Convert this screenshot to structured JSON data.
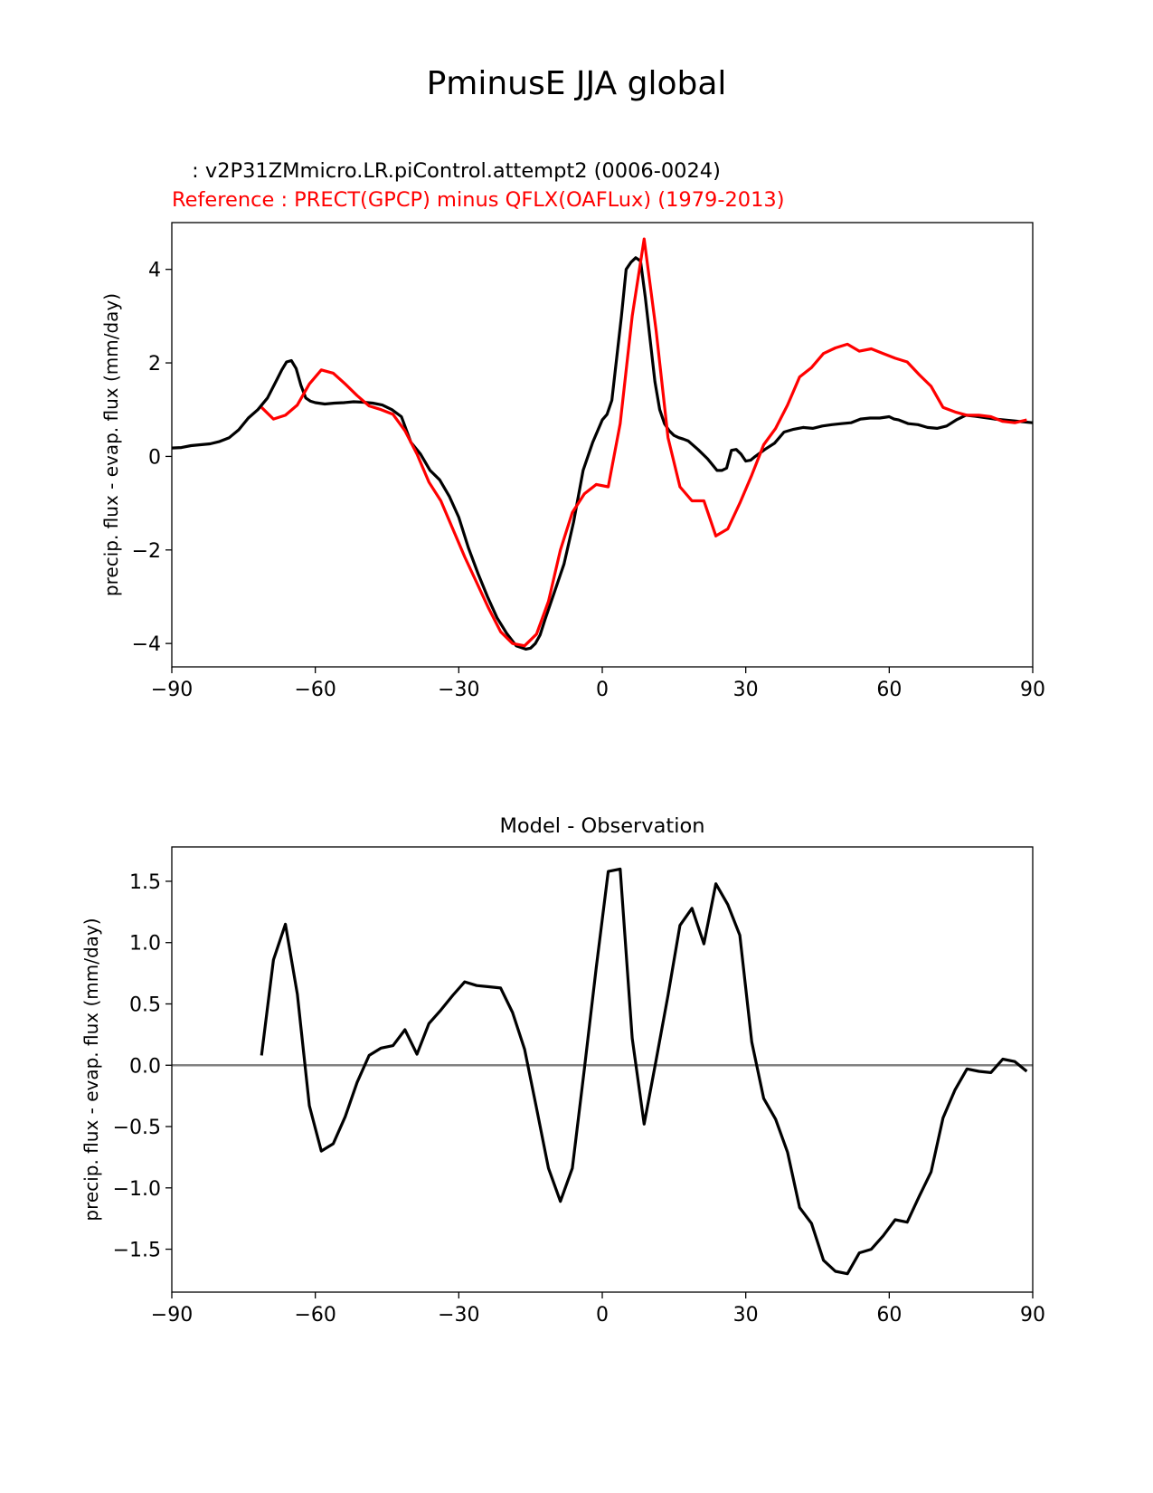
{
  "figure": {
    "title": "PminusE JJA global",
    "test_label": " : v2P31ZMmicro.LR.piControl.attempt2 (0006-0024)",
    "reference_label": "Reference : PRECT(GPCP) minus QFLX(OAFLux) (1979-2013)",
    "colors": {
      "test": "#000000",
      "reference": "#ff0000",
      "zero_line": "#808080"
    }
  },
  "chart_data": [
    {
      "type": "line",
      "title": "",
      "xlabel": "",
      "ylabel": "precip. flux - evap. flux (mm/day)",
      "xlim": [
        -90,
        90
      ],
      "ylim": [
        -4.5,
        5.0
      ],
      "xticks": [
        -90,
        -60,
        -30,
        0,
        30,
        60,
        90
      ],
      "yticks": [
        -4,
        -2,
        0,
        2,
        4
      ],
      "series": [
        {
          "name": "test",
          "color": "#000000",
          "x": [
            -90,
            -88,
            -86,
            -84,
            -82,
            -80,
            -78,
            -76,
            -74,
            -72,
            -70,
            -68,
            -67,
            -66,
            -65,
            -64,
            -63,
            -62,
            -61,
            -60,
            -58,
            -56,
            -54,
            -52,
            -50,
            -48,
            -46,
            -44,
            -42,
            -40,
            -38,
            -36,
            -34,
            -32,
            -30,
            -28,
            -26,
            -24,
            -22,
            -20,
            -18,
            -16,
            -15,
            -14,
            -13,
            -12,
            -10,
            -8,
            -6,
            -4,
            -2,
            0,
            1,
            2,
            3,
            4,
            5,
            6,
            7,
            8,
            9,
            10,
            11,
            12,
            13,
            14,
            15,
            16,
            17,
            18,
            20,
            22,
            24,
            25,
            26,
            27,
            28,
            29,
            30,
            31,
            32,
            34,
            36,
            38,
            40,
            42,
            44,
            46,
            48,
            50,
            52,
            54,
            56,
            58,
            60,
            61,
            62,
            64,
            66,
            68,
            70,
            72,
            74,
            76,
            78,
            80,
            82,
            84,
            86,
            88,
            90
          ],
          "y": [
            0.18,
            0.19,
            0.23,
            0.25,
            0.27,
            0.32,
            0.4,
            0.57,
            0.82,
            1.0,
            1.25,
            1.65,
            1.85,
            2.02,
            2.05,
            1.88,
            1.52,
            1.25,
            1.18,
            1.15,
            1.12,
            1.14,
            1.15,
            1.17,
            1.16,
            1.14,
            1.1,
            1.0,
            0.85,
            0.3,
            0.05,
            -0.3,
            -0.5,
            -0.85,
            -1.3,
            -1.95,
            -2.5,
            -3.0,
            -3.45,
            -3.78,
            -4.05,
            -4.12,
            -4.1,
            -4.0,
            -3.82,
            -3.5,
            -2.9,
            -2.3,
            -1.4,
            -0.3,
            0.3,
            0.78,
            0.9,
            1.2,
            2.1,
            3.0,
            4.0,
            4.15,
            4.25,
            4.18,
            3.4,
            2.5,
            1.6,
            1.0,
            0.7,
            0.55,
            0.45,
            0.4,
            0.37,
            0.33,
            0.15,
            -0.05,
            -0.3,
            -0.3,
            -0.25,
            0.13,
            0.15,
            0.05,
            -0.1,
            -0.08,
            0.0,
            0.15,
            0.28,
            0.52,
            0.58,
            0.62,
            0.6,
            0.65,
            0.68,
            0.7,
            0.72,
            0.8,
            0.82,
            0.82,
            0.85,
            0.8,
            0.78,
            0.7,
            0.68,
            0.62,
            0.6,
            0.65,
            0.78,
            0.88,
            0.86,
            0.83,
            0.8,
            0.78,
            0.76,
            0.74,
            0.72
          ]
        },
        {
          "name": "reference",
          "color": "#ff0000",
          "x": [
            -71.25,
            -68.75,
            -66.25,
            -63.75,
            -61.25,
            -58.75,
            -56.25,
            -53.75,
            -51.25,
            -48.75,
            -46.25,
            -43.75,
            -41.25,
            -38.75,
            -36.25,
            -33.75,
            -31.25,
            -28.75,
            -26.25,
            -23.75,
            -21.25,
            -18.75,
            -16.25,
            -13.75,
            -11.25,
            -8.75,
            -6.25,
            -3.75,
            -1.25,
            1.25,
            3.75,
            6.25,
            8.75,
            11.25,
            13.75,
            16.25,
            18.75,
            21.25,
            23.75,
            26.25,
            28.75,
            31.25,
            33.75,
            36.25,
            38.75,
            41.25,
            43.75,
            46.25,
            48.75,
            51.25,
            53.75,
            56.25,
            58.75,
            61.25,
            63.75,
            66.25,
            68.75,
            71.25,
            73.75,
            76.25,
            78.75,
            81.25,
            83.75,
            86.25,
            88.75
          ],
          "y": [
            1.05,
            0.8,
            0.88,
            1.1,
            1.55,
            1.85,
            1.78,
            1.55,
            1.3,
            1.08,
            1.0,
            0.9,
            0.55,
            0.05,
            -0.55,
            -0.95,
            -1.55,
            -2.15,
            -2.7,
            -3.25,
            -3.75,
            -4.0,
            -4.05,
            -3.8,
            -3.1,
            -2.0,
            -1.2,
            -0.8,
            -0.6,
            -0.65,
            0.7,
            3.0,
            4.65,
            2.7,
            0.4,
            -0.65,
            -0.95,
            -0.95,
            -1.7,
            -1.55,
            -1.0,
            -0.4,
            0.25,
            0.6,
            1.1,
            1.7,
            1.9,
            2.2,
            2.32,
            2.4,
            2.25,
            2.3,
            2.2,
            2.1,
            2.02,
            1.75,
            1.5,
            1.05,
            0.95,
            0.88,
            0.88,
            0.85,
            0.75,
            0.72,
            0.78
          ]
        }
      ]
    },
    {
      "type": "line",
      "title": "Model - Observation",
      "xlabel": "",
      "ylabel": "precip. flux - evap. flux (mm/day)",
      "xlim": [
        -90,
        90
      ],
      "ylim": [
        -1.85,
        1.78
      ],
      "xticks": [
        -90,
        -60,
        -30,
        0,
        30,
        60,
        90
      ],
      "yticks": [
        -1.5,
        -1.0,
        -0.5,
        0.0,
        0.5,
        1.0,
        1.5
      ],
      "ytick_labels": [
        "−1.5",
        "−1.0",
        "−0.5",
        "0.0",
        "0.5",
        "1.0",
        "1.5"
      ],
      "zero_line": true,
      "series": [
        {
          "name": "difference",
          "color": "#000000",
          "x": [
            -71.25,
            -68.75,
            -66.25,
            -63.75,
            -61.25,
            -58.75,
            -56.25,
            -53.75,
            -51.25,
            -48.75,
            -46.25,
            -43.75,
            -41.25,
            -38.75,
            -36.25,
            -33.75,
            -31.25,
            -28.75,
            -26.25,
            -23.75,
            -21.25,
            -18.75,
            -16.25,
            -13.75,
            -11.25,
            -8.75,
            -6.25,
            -3.75,
            -1.25,
            1.25,
            3.75,
            6.25,
            8.75,
            11.25,
            13.75,
            16.25,
            18.75,
            21.25,
            23.75,
            26.25,
            28.75,
            31.25,
            33.75,
            36.25,
            38.75,
            41.25,
            43.75,
            46.25,
            48.75,
            51.25,
            53.75,
            56.25,
            58.75,
            61.25,
            63.75,
            66.25,
            68.75,
            71.25,
            73.75,
            76.25,
            78.75,
            81.25,
            83.75,
            86.25,
            88.75
          ],
          "y": [
            0.08,
            0.86,
            1.15,
            0.58,
            -0.33,
            -0.7,
            -0.64,
            -0.42,
            -0.14,
            0.08,
            0.14,
            0.16,
            0.29,
            0.09,
            0.34,
            0.45,
            0.57,
            0.68,
            0.65,
            0.64,
            0.63,
            0.43,
            0.13,
            -0.35,
            -0.84,
            -1.11,
            -0.84,
            -0.03,
            0.8,
            1.58,
            1.6,
            0.22,
            -0.48,
            0.04,
            0.57,
            1.14,
            1.28,
            0.99,
            1.48,
            1.31,
            1.06,
            0.19,
            -0.27,
            -0.44,
            -0.71,
            -1.16,
            -1.29,
            -1.59,
            -1.68,
            -1.7,
            -1.53,
            -1.5,
            -1.39,
            -1.26,
            -1.28,
            -1.07,
            -0.87,
            -0.43,
            -0.2,
            -0.03,
            -0.05,
            -0.06,
            0.05,
            0.03,
            -0.05
          ]
        }
      ]
    }
  ]
}
